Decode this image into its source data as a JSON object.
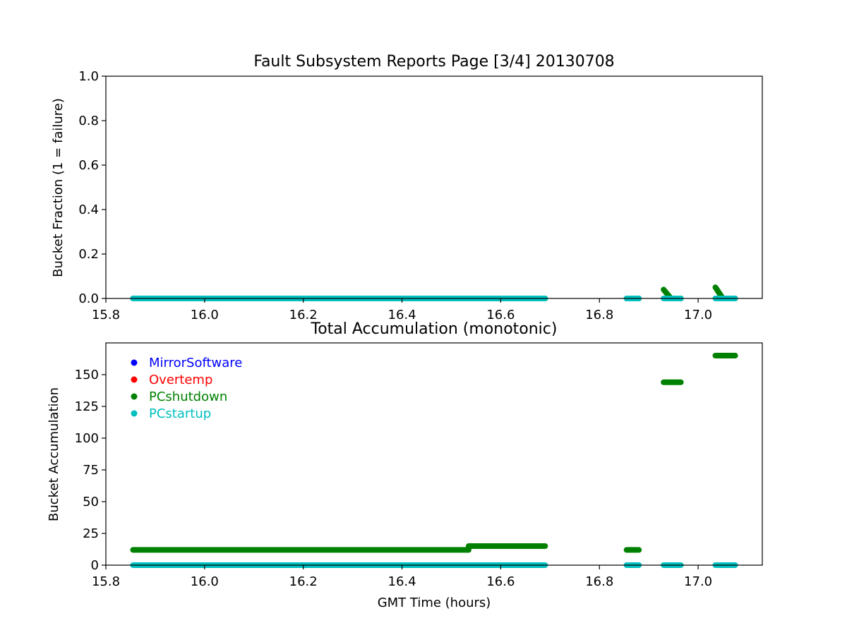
{
  "chart_data": [
    {
      "type": "scatter",
      "title": "Fault Subsystem Reports Page [3/4] 20130708",
      "xlabel": "",
      "ylabel": "Bucket Fraction (1 = failure)",
      "xlim": [
        15.8,
        17.13
      ],
      "ylim": [
        0.0,
        1.0
      ],
      "xticks": [
        "15.8",
        "16.0",
        "16.2",
        "16.4",
        "16.6",
        "16.8",
        "17.0"
      ],
      "yticks": [
        "0.0",
        "0.2",
        "0.4",
        "0.6",
        "0.8",
        "1.0"
      ],
      "grid": false,
      "series": [
        {
          "name": "PCshutdown",
          "color": "#008000",
          "segments": [
            {
              "x": [
                15.855,
                16.69
              ],
              "y": [
                0.0,
                0.0
              ]
            },
            {
              "x": [
                16.855,
                16.88
              ],
              "y": [
                0.0,
                0.0
              ]
            },
            {
              "x": [
                16.93,
                16.945
              ],
              "y": [
                0.04,
                0.0
              ]
            },
            {
              "x": [
                16.945,
                16.965
              ],
              "y": [
                0.0,
                0.0
              ]
            },
            {
              "x": [
                17.035,
                17.05
              ],
              "y": [
                0.05,
                0.0
              ]
            },
            {
              "x": [
                17.05,
                17.075
              ],
              "y": [
                0.0,
                0.0
              ]
            }
          ]
        },
        {
          "name": "PCstartup",
          "color": "#00bfbf",
          "segments": [
            {
              "x": [
                15.855,
                16.69
              ],
              "y": [
                0.0,
                0.0
              ]
            },
            {
              "x": [
                16.855,
                16.88
              ],
              "y": [
                0.0,
                0.0
              ]
            },
            {
              "x": [
                16.93,
                16.965
              ],
              "y": [
                0.0,
                0.0
              ]
            },
            {
              "x": [
                17.035,
                17.075
              ],
              "y": [
                0.0,
                0.0
              ]
            }
          ]
        }
      ]
    },
    {
      "type": "scatter",
      "title": "Total Accumulation (monotonic)",
      "xlabel": "GMT Time (hours)",
      "ylabel": "Bucket Accumulation",
      "xlim": [
        15.8,
        17.13
      ],
      "ylim": [
        0,
        175
      ],
      "xticks": [
        "15.8",
        "16.0",
        "16.2",
        "16.4",
        "16.6",
        "16.8",
        "17.0"
      ],
      "yticks": [
        "0",
        "25",
        "50",
        "75",
        "100",
        "125",
        "150"
      ],
      "grid": false,
      "legend": {
        "position": "upper-left",
        "entries": [
          {
            "label": "MirrorSoftware",
            "color": "#0000ff"
          },
          {
            "label": "Overtemp",
            "color": "#ff0000"
          },
          {
            "label": "PCshutdown",
            "color": "#008000"
          },
          {
            "label": "PCstartup",
            "color": "#00bfbf"
          }
        ]
      },
      "series": [
        {
          "name": "PCshutdown",
          "color": "#008000",
          "segments": [
            {
              "x": [
                15.855,
                16.535
              ],
              "y": [
                12,
                12
              ]
            },
            {
              "x": [
                16.535,
                16.69
              ],
              "y": [
                15,
                15
              ]
            },
            {
              "x": [
                16.855,
                16.88
              ],
              "y": [
                12,
                12
              ]
            },
            {
              "x": [
                16.93,
                16.965
              ],
              "y": [
                144,
                144
              ]
            },
            {
              "x": [
                17.035,
                17.075
              ],
              "y": [
                165,
                165
              ]
            }
          ]
        },
        {
          "name": "PCstartup",
          "color": "#00bfbf",
          "segments": [
            {
              "x": [
                15.855,
                16.69
              ],
              "y": [
                0,
                0
              ]
            },
            {
              "x": [
                16.855,
                16.88
              ],
              "y": [
                0,
                0
              ]
            },
            {
              "x": [
                16.93,
                16.965
              ],
              "y": [
                0,
                0
              ]
            },
            {
              "x": [
                17.035,
                17.075
              ],
              "y": [
                0,
                0
              ]
            }
          ]
        }
      ]
    }
  ]
}
